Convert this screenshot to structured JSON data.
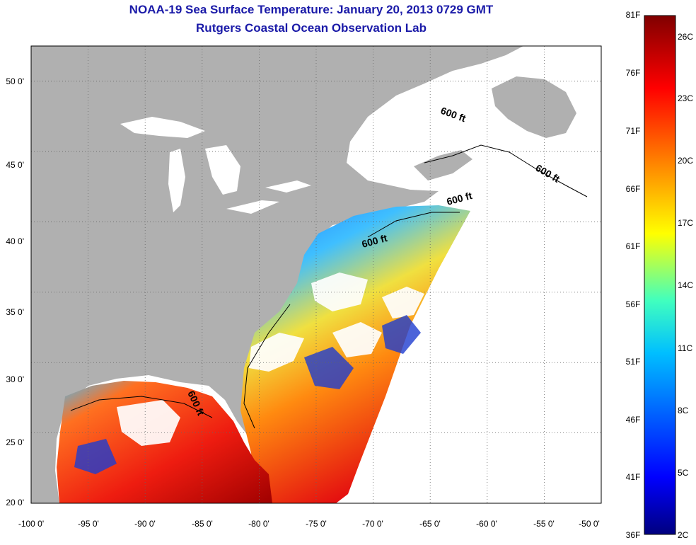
{
  "title": {
    "line1": "NOAA-19 Sea Surface Temperature:  January 20, 2013 0729 GMT",
    "line2": "Rutgers Coastal Ocean Observation Lab"
  },
  "map": {
    "lat_range": [
      20,
      52.5
    ],
    "lon_range": [
      -100,
      -50
    ],
    "lat_ticks": [
      {
        "value": 50,
        "label": "50 0'"
      },
      {
        "value": 45,
        "label": "45 0'"
      },
      {
        "value": 40,
        "label": "40 0'"
      },
      {
        "value": 35,
        "label": "35 0'"
      },
      {
        "value": 30,
        "label": "30 0'"
      },
      {
        "value": 25,
        "label": "25 0'"
      },
      {
        "value": 20,
        "label": "20 0'"
      }
    ],
    "lon_ticks": [
      {
        "value": -100,
        "label": "-100 0'"
      },
      {
        "value": -95,
        "label": "-95 0'"
      },
      {
        "value": -90,
        "label": "-90 0'"
      },
      {
        "value": -85,
        "label": "-85 0'"
      },
      {
        "value": -80,
        "label": "-80 0'"
      },
      {
        "value": -75,
        "label": "-75 0'"
      },
      {
        "value": -70,
        "label": "-70 0'"
      },
      {
        "value": -65,
        "label": "-65 0'"
      },
      {
        "value": -60,
        "label": "-60 0'"
      },
      {
        "value": -55,
        "label": "-55 0'"
      },
      {
        "value": -50,
        "label": "-50 0'"
      }
    ],
    "contour_labels": [
      "600 ft",
      "600 ft",
      "600 ft",
      "600 ft",
      "600 ft"
    ],
    "colors": {
      "land": "#b0b0b0",
      "ocean_nodata": "#ffffff",
      "grid": "#666666"
    }
  },
  "colorbar": {
    "fahrenheit": [
      {
        "value": 81,
        "label": "81F"
      },
      {
        "value": 76,
        "label": "76F"
      },
      {
        "value": 71,
        "label": "71F"
      },
      {
        "value": 66,
        "label": "66F"
      },
      {
        "value": 61,
        "label": "61F"
      },
      {
        "value": 56,
        "label": "56F"
      },
      {
        "value": 51,
        "label": "51F"
      },
      {
        "value": 46,
        "label": "46F"
      },
      {
        "value": 41,
        "label": "41F"
      },
      {
        "value": 36,
        "label": "36F"
      }
    ],
    "celsius": [
      {
        "value": 26,
        "label": "26C"
      },
      {
        "value": 23,
        "label": "23C"
      },
      {
        "value": 20,
        "label": "20C"
      },
      {
        "value": 17,
        "label": "17C"
      },
      {
        "value": 14,
        "label": "14C"
      },
      {
        "value": 11,
        "label": "11C"
      },
      {
        "value": 8,
        "label": "8C"
      },
      {
        "value": 5,
        "label": "5C"
      },
      {
        "value": 2,
        "label": "2C"
      }
    ],
    "palette": [
      "#00007f",
      "#0000ff",
      "#007fff",
      "#00ffff",
      "#7fff7f",
      "#ffff00",
      "#ff7f00",
      "#ff0000",
      "#7f0000"
    ]
  }
}
